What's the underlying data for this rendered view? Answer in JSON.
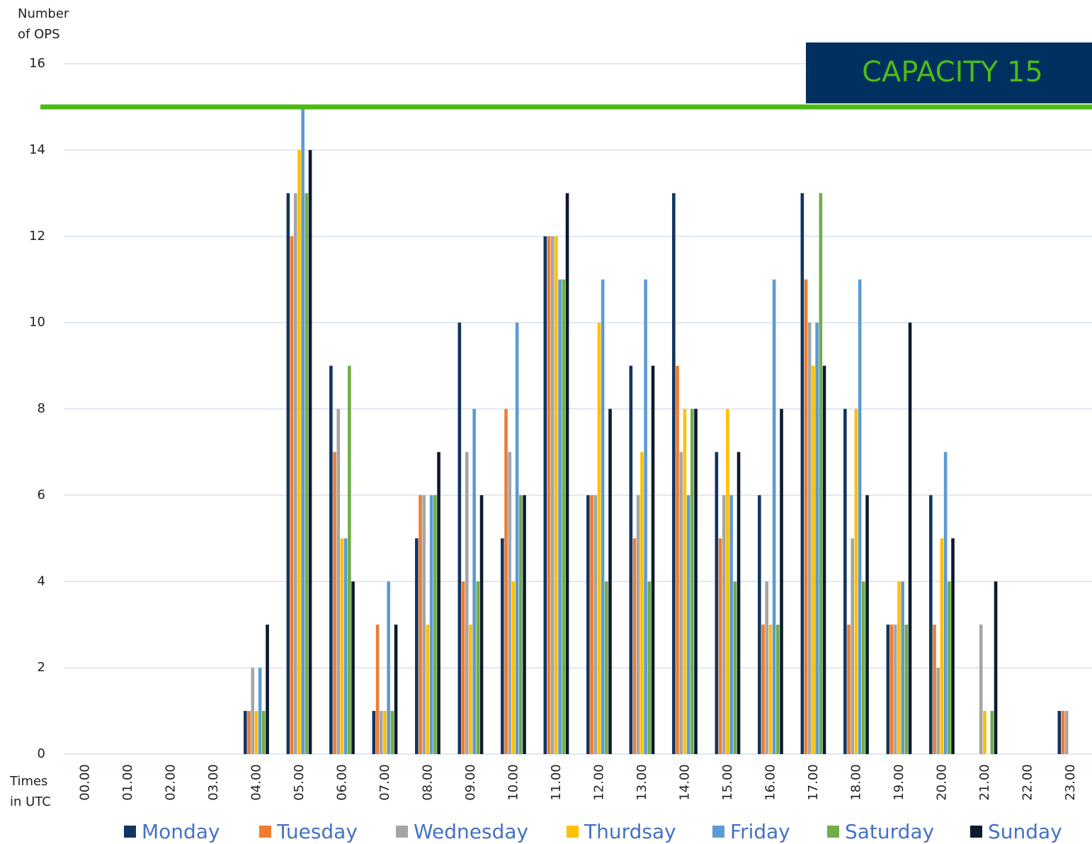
{
  "chart_data": {
    "type": "bar",
    "y_label": [
      "Number",
      "of OPS"
    ],
    "x_label": [
      "Times",
      "in UTC"
    ],
    "categories": [
      "00.00",
      "01.00",
      "02.00",
      "03.00",
      "04.00",
      "05.00",
      "06.00",
      "07.00",
      "08.00",
      "09.00",
      "10.00",
      "11.00",
      "12.00",
      "13.00",
      "14.00",
      "15.00",
      "16.00",
      "17.00",
      "18.00",
      "19.00",
      "20.00",
      "21.00",
      "22.00",
      "23.00"
    ],
    "series": [
      {
        "name": "Monday",
        "color": "#12355f",
        "values": [
          0,
          0,
          0,
          0,
          1,
          13,
          9,
          1,
          5,
          10,
          5,
          12,
          6,
          9,
          13,
          7,
          6,
          13,
          8,
          3,
          6,
          0,
          0,
          1
        ]
      },
      {
        "name": "Tuesday",
        "color": "#ed7d31",
        "values": [
          0,
          0,
          0,
          0,
          1,
          12,
          7,
          3,
          6,
          4,
          8,
          12,
          6,
          5,
          9,
          5,
          3,
          11,
          3,
          3,
          3,
          0,
          0,
          1
        ]
      },
      {
        "name": "Wednesday",
        "color": "#a5a5a5",
        "values": [
          0,
          0,
          0,
          0,
          2,
          13,
          8,
          1,
          6,
          7,
          7,
          12,
          6,
          6,
          7,
          6,
          4,
          10,
          5,
          3,
          2,
          3,
          0,
          1
        ]
      },
      {
        "name": "Thurdsay",
        "color": "#ffc000",
        "values": [
          0,
          0,
          0,
          0,
          1,
          14,
          5,
          1,
          3,
          3,
          4,
          12,
          10,
          7,
          8,
          8,
          3,
          9,
          8,
          4,
          5,
          1,
          0,
          0
        ]
      },
      {
        "name": "Friday",
        "color": "#5b9bd5",
        "values": [
          0,
          0,
          0,
          0,
          2,
          15,
          5,
          4,
          6,
          8,
          10,
          11,
          11,
          11,
          6,
          6,
          11,
          10,
          11,
          4,
          7,
          0,
          0,
          0
        ]
      },
      {
        "name": "Saturday",
        "color": "#70ad47",
        "values": [
          0,
          0,
          0,
          0,
          1,
          13,
          9,
          1,
          6,
          4,
          6,
          11,
          4,
          4,
          8,
          4,
          3,
          13,
          4,
          3,
          4,
          1,
          0,
          0
        ]
      },
      {
        "name": "Sunday",
        "color": "#0c1a2e",
        "values": [
          0,
          0,
          0,
          0,
          3,
          14,
          4,
          3,
          7,
          6,
          6,
          13,
          8,
          9,
          8,
          7,
          8,
          9,
          6,
          10,
          5,
          4,
          0,
          0
        ]
      }
    ],
    "ylim": [
      0,
      16
    ],
    "yticks": [
      0,
      2,
      4,
      6,
      8,
      10,
      12,
      14,
      16
    ],
    "grid": true,
    "legend": "bottom",
    "threshold": {
      "value": 15,
      "label": "CAPACITY 15",
      "color": "#4cbb17",
      "box_color": "#00305f"
    }
  }
}
